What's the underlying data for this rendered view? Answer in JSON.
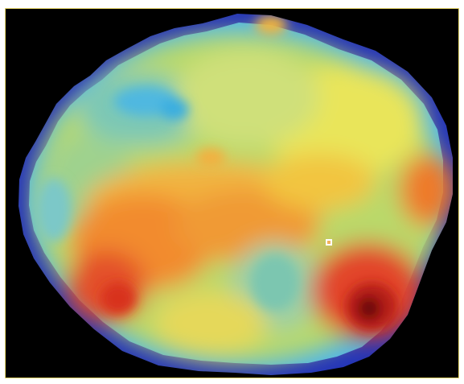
{
  "image": {
    "background_color": "#000000",
    "frame_color": "#e6d66a",
    "colormap": [
      "#1a2cb8",
      "#3fc2e8",
      "#9fd28a",
      "#f0e54a",
      "#f3a13a",
      "#e24724",
      "#a61214",
      "#5a0a0b"
    ],
    "description_type": "heatmap",
    "marker_color": "#ffffff"
  }
}
